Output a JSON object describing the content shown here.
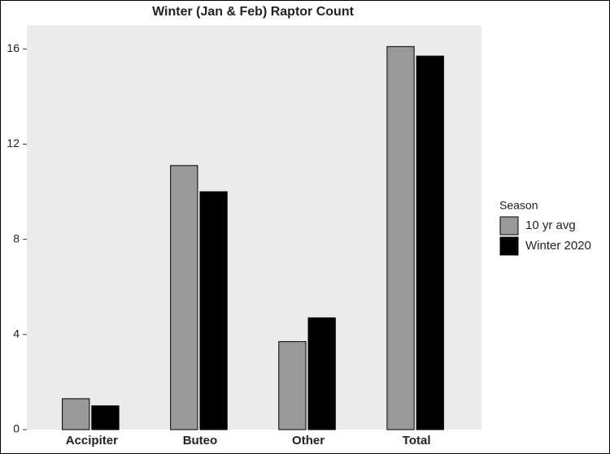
{
  "chart_data": {
    "type": "bar",
    "title": "Winter (Jan & Feb) Raptor Count",
    "categories": [
      "Accipiter",
      "Buteo",
      "Other",
      "Total"
    ],
    "series": [
      {
        "name": "10 yr avg",
        "color": "#999999",
        "values": [
          1.3,
          11.1,
          3.7,
          16.1
        ]
      },
      {
        "name": "Winter 2020",
        "color": "#000000",
        "values": [
          1.0,
          10.0,
          4.7,
          15.7
        ]
      }
    ],
    "legend_title": "Season",
    "ylim": [
      0,
      17
    ],
    "yticks": [
      0,
      4,
      8,
      12,
      16
    ],
    "grid": false
  }
}
